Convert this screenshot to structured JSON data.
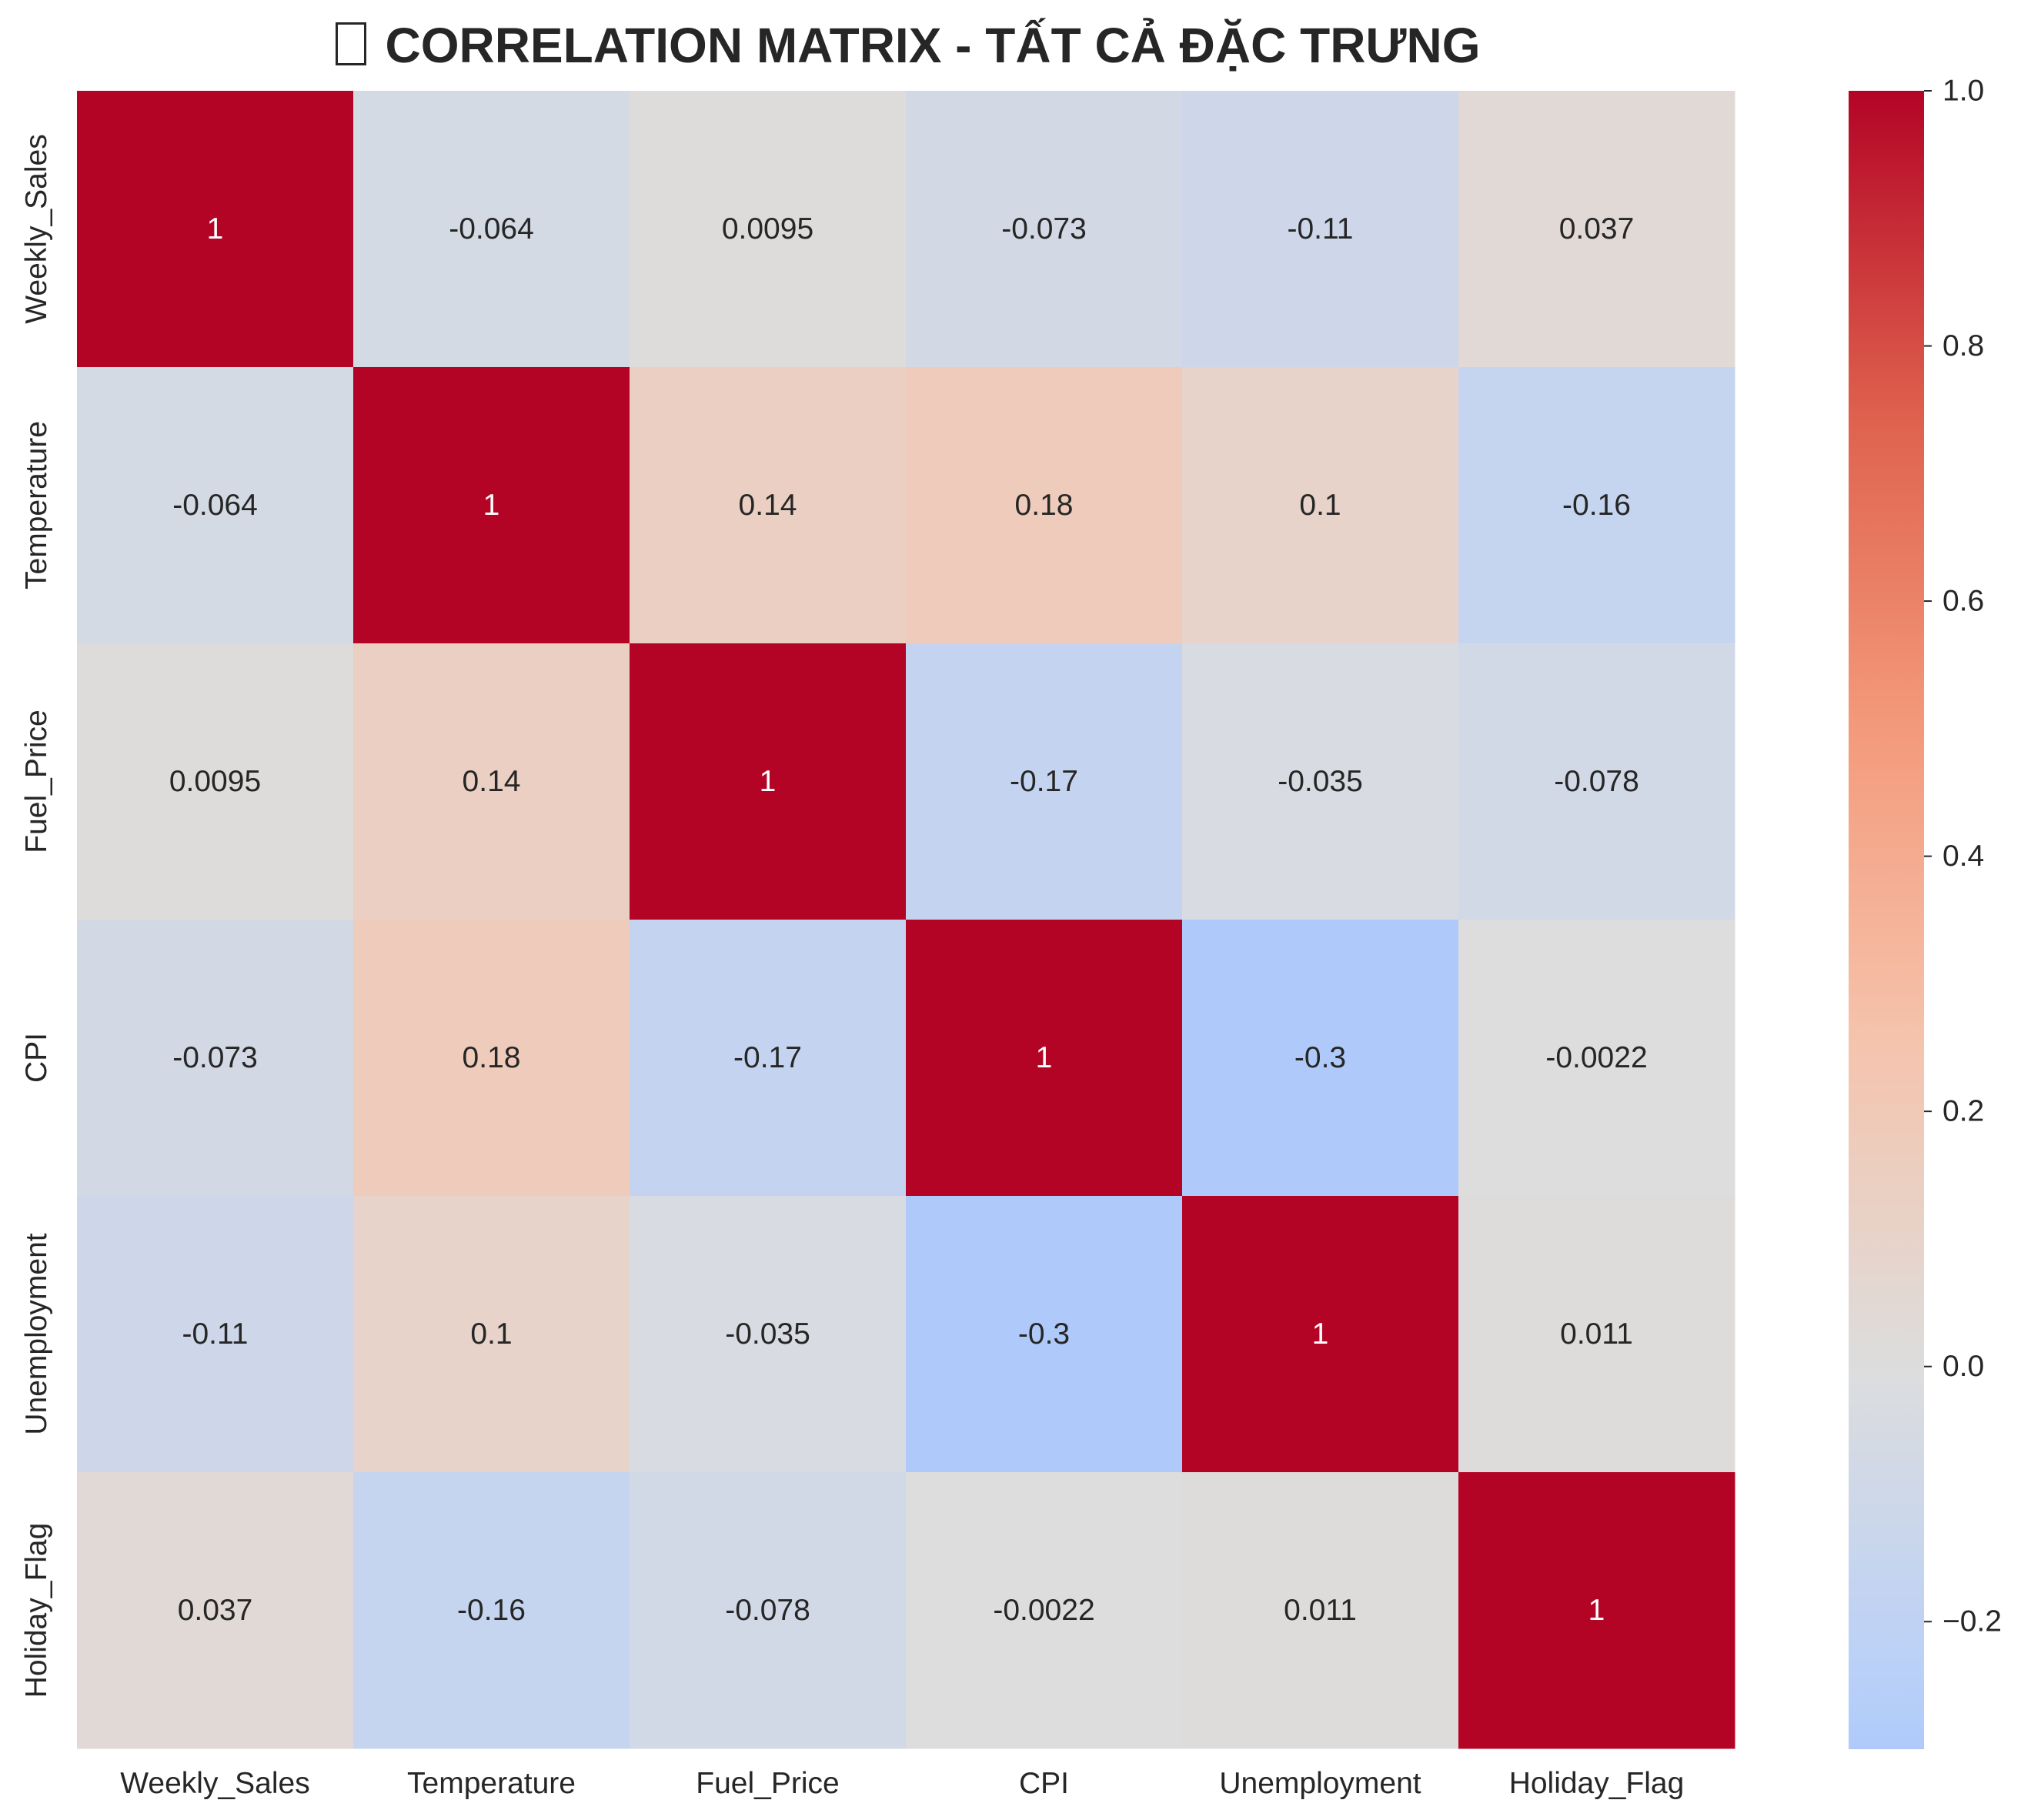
{
  "chart_data": {
    "type": "heatmap",
    "title": "CORRELATION MATRIX - TẤT CẢ ĐẶC TRƯNG",
    "title_icon": "missing-glyph-box",
    "xlabel": "",
    "ylabel": "",
    "x_labels": [
      "Weekly_Sales",
      "Temperature",
      "Fuel_Price",
      "CPI",
      "Unemployment",
      "Holiday_Flag"
    ],
    "y_labels": [
      "Weekly_Sales",
      "Temperature",
      "Fuel_Price",
      "CPI",
      "Unemployment",
      "Holiday_Flag"
    ],
    "values": [
      [
        1,
        -0.064,
        0.0095,
        -0.073,
        -0.11,
        0.037
      ],
      [
        -0.064,
        1,
        0.14,
        0.18,
        0.1,
        -0.16
      ],
      [
        0.0095,
        0.14,
        1,
        -0.17,
        -0.035,
        -0.078
      ],
      [
        -0.073,
        0.18,
        -0.17,
        1,
        -0.3,
        -0.0022
      ],
      [
        -0.11,
        0.1,
        -0.035,
        -0.3,
        1,
        0.011
      ],
      [
        0.037,
        -0.16,
        -0.078,
        -0.0022,
        0.011,
        1
      ]
    ],
    "annotations": [
      [
        "1",
        "-0.064",
        "0.0095",
        "-0.073",
        "-0.11",
        "0.037"
      ],
      [
        "-0.064",
        "1",
        "0.14",
        "0.18",
        "0.1",
        "-0.16"
      ],
      [
        "0.0095",
        "0.14",
        "1",
        "-0.17",
        "-0.035",
        "-0.078"
      ],
      [
        "-0.073",
        "0.18",
        "-0.17",
        "1",
        "-0.3",
        "-0.0022"
      ],
      [
        "-0.11",
        "0.1",
        "-0.035",
        "-0.3",
        "1",
        "0.011"
      ],
      [
        "0.037",
        "-0.16",
        "-0.078",
        "-0.0022",
        "0.011",
        "1"
      ]
    ],
    "colormap": "coolwarm",
    "center": 0,
    "color_range": [
      -0.3,
      1.0
    ],
    "colorbar": {
      "ticks": [
        -0.2,
        0.0,
        0.2,
        0.4,
        0.6,
        0.8,
        1.0
      ],
      "tick_labels": [
        "−0.2",
        "0.0",
        "0.2",
        "0.4",
        "0.6",
        "0.8",
        "1.0"
      ],
      "placement": "right"
    },
    "grid": false
  }
}
